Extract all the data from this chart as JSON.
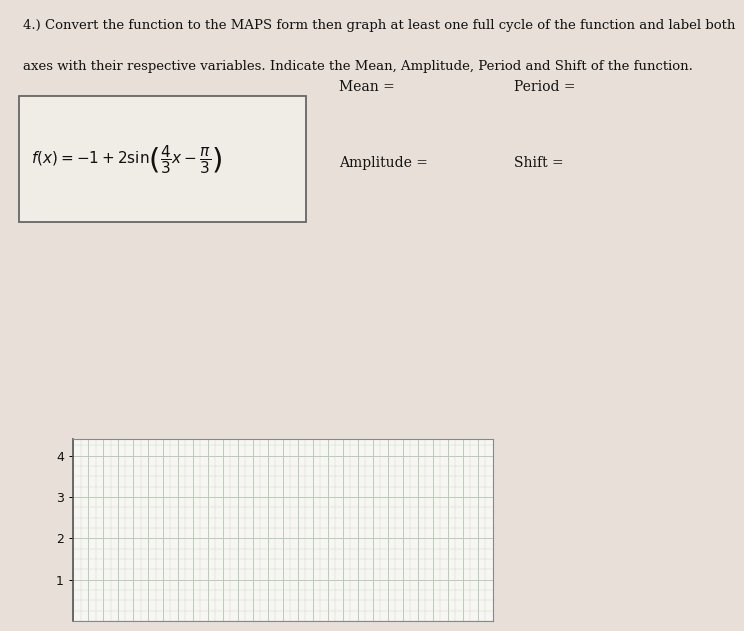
{
  "title_line1": "4.) Convert the function to the MAPS form then graph at least one full cycle of the function and label both",
  "title_line2": "axes with their respective variables. Indicate the Mean, Amplitude, Period and Shift of the function.",
  "label_mean": "Mean =",
  "label_period": "Period =",
  "label_amplitude": "Amplitude =",
  "label_shift": "Shift =",
  "graph_yticks": [
    1,
    2,
    3,
    4
  ],
  "graph_ylim": [
    0,
    4.4
  ],
  "graph_xlim": [
    0,
    28
  ],
  "bg_color": "#e8e0d8",
  "graph_bg": "#f8f6f2",
  "box_facecolor": "#f0ece6",
  "grid_color_major": "#b8ccb8",
  "grid_color_minor": "#ccdacc",
  "text_color": "#111111",
  "title_fontsize": 9.5,
  "label_fontsize": 10,
  "graph_label_fontsize": 9,
  "func_fontsize": 11
}
